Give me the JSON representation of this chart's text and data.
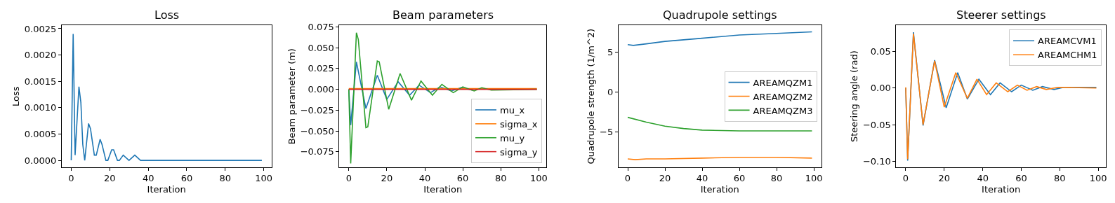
{
  "chart_data": [
    {
      "type": "line",
      "title": "Loss",
      "xlabel": "Iteration",
      "ylabel": "Loss",
      "xlim": [
        -4.95,
        103.95
      ],
      "xticks": [
        0,
        20,
        40,
        60,
        80,
        100
      ],
      "ylim": [
        -0.00013,
        0.00256
      ],
      "yticks": [
        {
          "value": 0,
          "label": "0.0000"
        },
        {
          "value": 0.0005,
          "label": "0.0005"
        },
        {
          "value": 0.001,
          "label": "0.0010"
        },
        {
          "value": 0.0015,
          "label": "0.0015"
        },
        {
          "value": 0.002,
          "label": "0.0020"
        },
        {
          "value": 0.0025,
          "label": "0.0025"
        }
      ],
      "legend": false,
      "series": [
        {
          "color": "#1f77b4",
          "x": [
            0,
            1,
            2,
            4,
            5,
            6,
            7,
            9,
            10,
            12,
            13,
            15,
            16,
            18,
            19,
            21,
            22,
            24,
            25,
            27,
            30,
            33,
            36,
            99
          ],
          "values": [
            0,
            0.0024,
            0.0001,
            0.0014,
            0.0011,
            0.0003,
            0,
            0.0007,
            0.0006,
            0.0001,
            0.0001,
            0.0004,
            0.0003,
            0,
            0,
            0.0002,
            0.0002,
            0,
            0,
            0.0001,
            0,
            0.0001,
            0,
            0
          ]
        }
      ]
    },
    {
      "type": "line",
      "title": "Beam parameters",
      "xlabel": "Iteration",
      "ylabel": "Beam parameter (m)",
      "xlim": [
        -4.95,
        103.95
      ],
      "xticks": [
        0,
        20,
        40,
        60,
        80,
        100
      ],
      "ylim": [
        -0.0936,
        0.0767
      ],
      "yticks": [
        {
          "value": -0.075,
          "label": "−0.075"
        },
        {
          "value": -0.05,
          "label": "−0.050"
        },
        {
          "value": -0.025,
          "label": "−0.025"
        },
        {
          "value": 0,
          "label": "0.000"
        },
        {
          "value": 0.025,
          "label": "0.025"
        },
        {
          "value": 0.05,
          "label": "0.050"
        },
        {
          "value": 0.075,
          "label": "0.075"
        }
      ],
      "legend": "bottom right",
      "series": [
        {
          "name": "mu_x",
          "color": "#1f77b4",
          "x": [
            0,
            1,
            4,
            9,
            15,
            20,
            26,
            32,
            37,
            43,
            48,
            54,
            59,
            65
          ],
          "values": [
            0,
            -0.043,
            0.033,
            -0.023,
            0.017,
            -0.012,
            0.009,
            -0.007,
            0.005,
            -0.004,
            0.003,
            -0.002,
            0.002,
            -0.001
          ]
        },
        {
          "name": "sigma_x",
          "color": "#ff7f0e",
          "x": [
            0,
            99
          ],
          "values": [
            0.001,
            0.001
          ]
        },
        {
          "name": "mu_y",
          "color": "#2ca02c",
          "x": [
            0,
            1,
            4,
            5,
            9,
            10,
            15,
            16,
            21,
            27,
            33,
            38,
            44,
            49,
            55,
            60,
            66,
            70,
            75,
            99
          ],
          "values": [
            0,
            -0.089,
            0.068,
            0.06,
            -0.046,
            -0.045,
            0.034,
            0.033,
            -0.024,
            0.019,
            -0.013,
            0.01,
            -0.007,
            0.006,
            -0.004,
            0.003,
            -0.002,
            0.002,
            -0.001,
            0
          ]
        },
        {
          "name": "sigma_y",
          "color": "#d62728",
          "x": [
            0,
            99
          ],
          "values": [
            0,
            0
          ]
        }
      ]
    },
    {
      "type": "line",
      "title": "Quadrupole settings",
      "xlabel": "Iteration",
      "ylabel": "Quadrupole strength (1/m^2)",
      "xlim": [
        -4.95,
        103.95
      ],
      "xticks": [
        0,
        20,
        40,
        60,
        80,
        100
      ],
      "ylim": [
        -9.44,
        8.29
      ],
      "yticks": [
        {
          "value": -5,
          "label": "−5"
        },
        0,
        5
      ],
      "legend": "right",
      "series": [
        {
          "name": "AREAMQZM1",
          "color": "#1f77b4",
          "x": [
            0,
            3,
            10,
            20,
            40,
            60,
            80,
            99
          ],
          "values": [
            5.9,
            5.8,
            6.0,
            6.3,
            6.7,
            7.1,
            7.3,
            7.5
          ]
        },
        {
          "name": "AREAMQZM2",
          "color": "#ff7f0e",
          "x": [
            0,
            4,
            10,
            20,
            40,
            60,
            80,
            99
          ],
          "values": [
            -8.4,
            -8.5,
            -8.4,
            -8.4,
            -8.3,
            -8.2,
            -8.2,
            -8.3
          ]
        },
        {
          "name": "AREAMQZM3",
          "color": "#2ca02c",
          "x": [
            0,
            10,
            20,
            30,
            40,
            60,
            99
          ],
          "values": [
            -3.2,
            -3.8,
            -4.3,
            -4.6,
            -4.8,
            -4.9,
            -4.9
          ]
        }
      ]
    },
    {
      "type": "line",
      "title": "Steerer settings",
      "xlabel": "Iteration",
      "ylabel": "Steering angle (rad)",
      "xlim": [
        -4.95,
        103.95
      ],
      "xticks": [
        0,
        20,
        40,
        60,
        80,
        100
      ],
      "ylim": [
        -0.1079,
        0.0852
      ],
      "yticks": [
        {
          "value": -0.1,
          "label": "−0.10"
        },
        {
          "value": -0.05,
          "label": "−0.05"
        },
        {
          "value": 0,
          "label": "0.00"
        },
        0.05
      ],
      "legend": "top right",
      "series": [
        {
          "name": "AREAMCVM1",
          "color": "#1f77b4",
          "x": [
            0,
            1,
            4,
            9,
            15,
            21,
            27,
            32,
            38,
            44,
            49,
            55,
            60,
            66,
            71,
            77,
            82,
            99
          ],
          "values": [
            0,
            -0.099,
            0.076,
            -0.051,
            0.038,
            -0.027,
            0.021,
            -0.015,
            0.012,
            -0.009,
            0.007,
            -0.005,
            0.004,
            -0.003,
            0.002,
            -0.002,
            0.001,
            0.001
          ]
        },
        {
          "name": "AREAMCHM1",
          "color": "#ff7f0e",
          "x": [
            0,
            1,
            4,
            9,
            15,
            20,
            26,
            32,
            37,
            42,
            47,
            53,
            58,
            63,
            68,
            73,
            79,
            99
          ],
          "values": [
            0.001,
            -0.097,
            0.074,
            -0.05,
            0.037,
            -0.026,
            0.021,
            -0.014,
            0.012,
            -0.009,
            0.007,
            -0.005,
            0.004,
            -0.003,
            0.002,
            -0.002,
            0.001,
            0
          ]
        }
      ]
    }
  ]
}
